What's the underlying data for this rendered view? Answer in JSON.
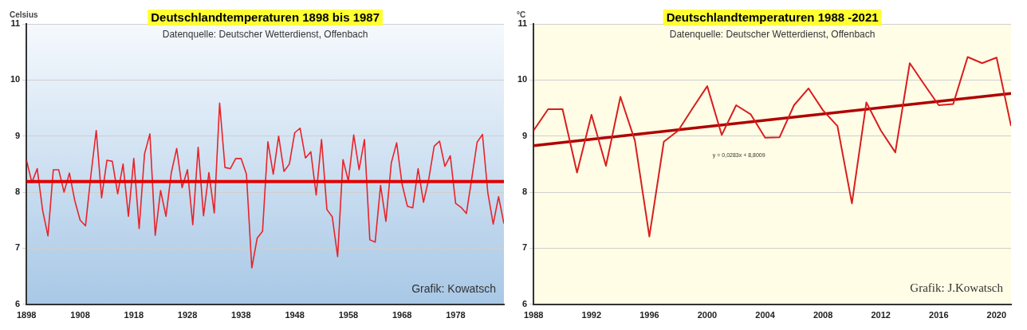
{
  "chart_data": [
    {
      "type": "line",
      "title": "Deutschlandtemperaturen 1898 bis 1987",
      "subtitle": "Datenquelle: Deutscher Wetterdienst, Offenbach",
      "ylabel": "Celsius",
      "x": [
        1898,
        1899,
        1900,
        1901,
        1902,
        1903,
        1904,
        1905,
        1906,
        1907,
        1908,
        1909,
        1910,
        1911,
        1912,
        1913,
        1914,
        1915,
        1916,
        1917,
        1918,
        1919,
        1920,
        1921,
        1922,
        1923,
        1924,
        1925,
        1926,
        1927,
        1928,
        1929,
        1930,
        1931,
        1932,
        1933,
        1934,
        1935,
        1936,
        1937,
        1938,
        1939,
        1940,
        1941,
        1942,
        1943,
        1944,
        1945,
        1946,
        1947,
        1948,
        1949,
        1950,
        1951,
        1952,
        1953,
        1954,
        1955,
        1956,
        1957,
        1958,
        1959,
        1960,
        1961,
        1962,
        1963,
        1964,
        1965,
        1966,
        1967,
        1968,
        1969,
        1970,
        1971,
        1972,
        1973,
        1974,
        1975,
        1976,
        1977,
        1978,
        1979,
        1980,
        1981,
        1982,
        1983,
        1984,
        1985,
        1986,
        1987
      ],
      "series": [
        {
          "color": "#e8232a",
          "values": [
            8.57,
            8.17,
            8.42,
            7.68,
            7.22,
            8.4,
            8.4,
            8.0,
            8.34,
            7.85,
            7.5,
            7.4,
            8.3,
            9.1,
            7.9,
            8.57,
            8.55,
            7.97,
            8.5,
            7.57,
            8.6,
            7.35,
            8.68,
            9.04,
            7.23,
            8.03,
            7.57,
            8.35,
            8.78,
            8.08,
            8.4,
            7.42,
            8.8,
            7.58,
            8.35,
            7.63,
            9.59,
            8.44,
            8.42,
            8.6,
            8.6,
            8.32,
            6.65,
            7.18,
            7.3,
            8.9,
            8.32,
            9.0,
            8.37,
            8.5,
            9.06,
            9.14,
            8.61,
            8.72,
            7.95,
            8.94,
            7.69,
            7.56,
            6.85,
            8.58,
            8.2,
            9.02,
            8.4,
            8.94,
            7.15,
            7.11,
            8.12,
            7.48,
            8.52,
            8.88,
            8.15,
            7.75,
            7.72,
            8.42,
            7.82,
            8.24,
            8.82,
            8.91,
            8.46,
            8.65,
            7.8,
            7.73,
            7.62,
            8.24,
            8.89,
            9.03,
            7.99,
            7.43,
            7.92,
            7.44
          ]
        }
      ],
      "ref_lines": [
        {
          "axis": "y",
          "value": 8.19,
          "color": "#e00000"
        }
      ],
      "annotations": [
        "Grafik: Kowatsch"
      ],
      "xlim": [
        1898,
        1987
      ],
      "xticks": [
        1898,
        1908,
        1918,
        1928,
        1938,
        1948,
        1958,
        1968,
        1978
      ],
      "ylim": [
        6,
        11
      ],
      "yticks": [
        6,
        7,
        8,
        9,
        10,
        11
      ],
      "grid": "y",
      "legend": false,
      "marker": "none"
    },
    {
      "type": "line",
      "title": "Deutschlandtemperaturen 1988 -2021",
      "subtitle": "Datenquelle: Deutscher Wetterdienst, Offenbach",
      "ylabel": "°C",
      "x": [
        1988,
        1989,
        1990,
        1991,
        1992,
        1993,
        1994,
        1995,
        1996,
        1997,
        1998,
        1999,
        2000,
        2001,
        2002,
        2003,
        2004,
        2005,
        2006,
        2007,
        2008,
        2009,
        2010,
        2011,
        2012,
        2013,
        2014,
        2015,
        2016,
        2017,
        2018,
        2019,
        2020,
        2021
      ],
      "series": [
        {
          "color": "#d81e1e",
          "values": [
            9.1,
            9.48,
            9.48,
            8.35,
            9.38,
            8.47,
            9.7,
            8.92,
            7.21,
            8.9,
            9.1,
            9.5,
            9.89,
            9.02,
            9.55,
            9.39,
            8.97,
            8.98,
            9.55,
            9.85,
            9.46,
            9.18,
            7.8,
            9.6,
            9.1,
            8.71,
            10.3,
            9.92,
            9.55,
            9.57,
            10.41,
            10.3,
            10.4,
            9.18
          ]
        },
        {
          "color": "#b00000",
          "x": [
            1988,
            2021
          ],
          "values": [
            8.83,
            9.76
          ]
        }
      ],
      "annotations": [
        "y = 0,0283x + 8,8009",
        "Grafik: J.Kowatsch"
      ],
      "xlim": [
        1988,
        2021
      ],
      "xticks": [
        1988,
        1992,
        1996,
        2000,
        2004,
        2008,
        2012,
        2016,
        2020
      ],
      "ylim": [
        6,
        11
      ],
      "yticks": [
        6,
        7,
        8,
        9,
        10,
        11
      ],
      "grid": "y",
      "legend": false,
      "marker": "none"
    }
  ]
}
